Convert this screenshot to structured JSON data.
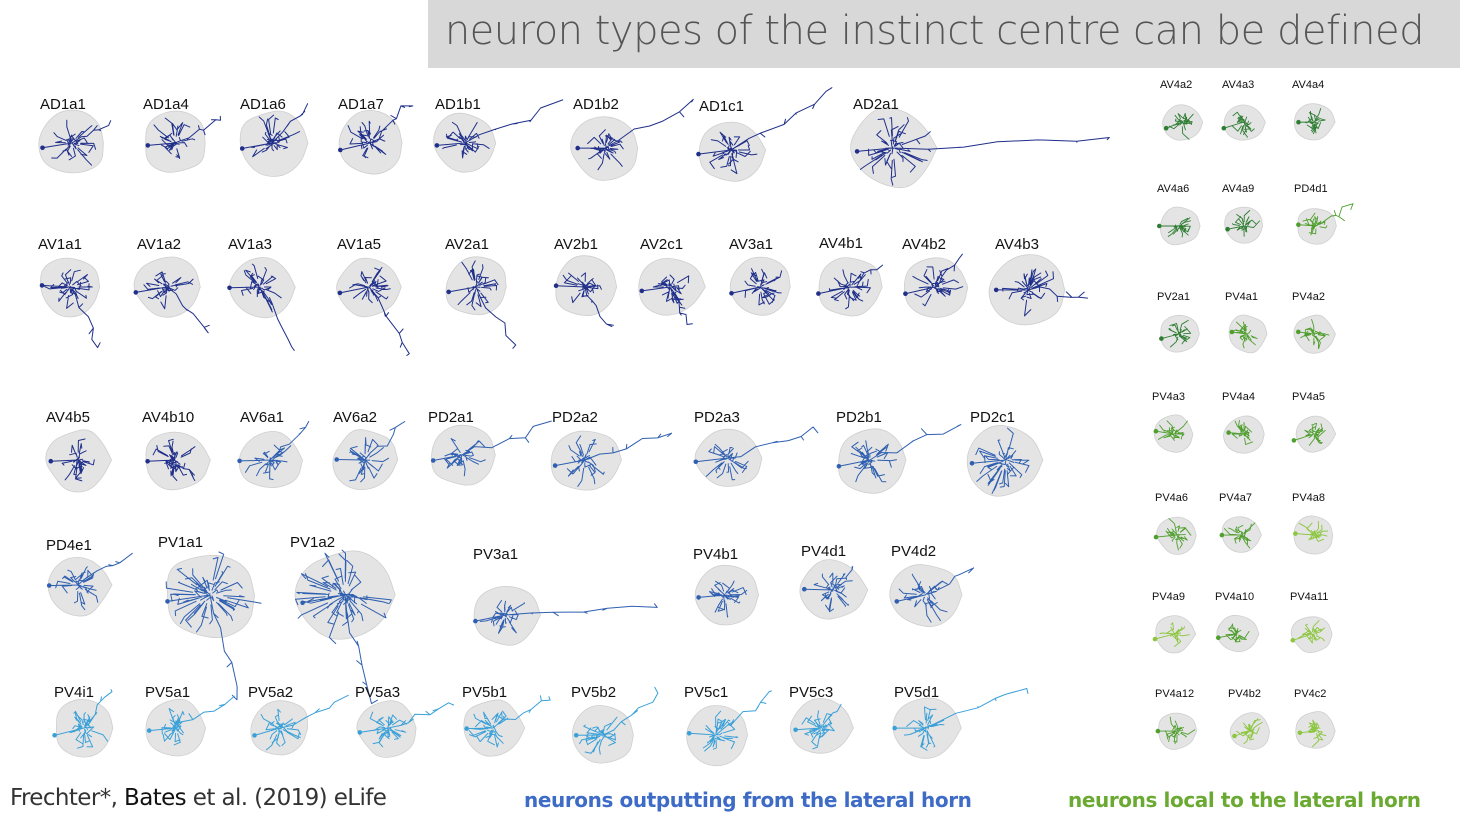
{
  "title": "neuron types of the instinct centre can be defined",
  "citation": {
    "author": "Frechter*, ",
    "bold_author": "Bates",
    "rest": " et al. (2019) eLife"
  },
  "legend": {
    "output_label": "neurons outputting from the lateral horn",
    "local_label": "neurons local to the lateral horn",
    "output_color": "#3d6bc6",
    "local_color": "#6aaa32"
  },
  "colors": {
    "lh_blob": "#e4e4e4",
    "dark_blue": "#1f2f8a",
    "mid_blue": "#2f5fb0",
    "light_blue": "#3aa0d8",
    "dark_green": "#2e7d32",
    "mid_green": "#4f9e2e",
    "light_green": "#8cc63f"
  },
  "output_neurons": [
    {
      "name": "AD1a1",
      "tone": "dark"
    },
    {
      "name": "AD1a4",
      "tone": "dark"
    },
    {
      "name": "AD1a6",
      "tone": "dark"
    },
    {
      "name": "AD1a7",
      "tone": "dark"
    },
    {
      "name": "AD1b1",
      "tone": "dark"
    },
    {
      "name": "AD1b2",
      "tone": "dark"
    },
    {
      "name": "AD1c1",
      "tone": "dark"
    },
    {
      "name": "AD2a1",
      "tone": "dark"
    },
    {
      "name": "AV1a1",
      "tone": "dark"
    },
    {
      "name": "AV1a2",
      "tone": "dark"
    },
    {
      "name": "AV1a3",
      "tone": "dark"
    },
    {
      "name": "AV1a5",
      "tone": "dark"
    },
    {
      "name": "AV2a1",
      "tone": "dark"
    },
    {
      "name": "AV2b1",
      "tone": "dark"
    },
    {
      "name": "AV2c1",
      "tone": "dark"
    },
    {
      "name": "AV3a1",
      "tone": "dark"
    },
    {
      "name": "AV4b1",
      "tone": "dark"
    },
    {
      "name": "AV4b2",
      "tone": "dark"
    },
    {
      "name": "AV4b3",
      "tone": "dark"
    },
    {
      "name": "AV4b5",
      "tone": "dark"
    },
    {
      "name": "AV4b10",
      "tone": "dark"
    },
    {
      "name": "AV6a1",
      "tone": "mid"
    },
    {
      "name": "AV6a2",
      "tone": "mid"
    },
    {
      "name": "PD2a1",
      "tone": "mid"
    },
    {
      "name": "PD2a2",
      "tone": "mid"
    },
    {
      "name": "PD2a3",
      "tone": "mid"
    },
    {
      "name": "PD2b1",
      "tone": "mid"
    },
    {
      "name": "PD2c1",
      "tone": "mid"
    },
    {
      "name": "PD4e1",
      "tone": "mid"
    },
    {
      "name": "PV1a1",
      "tone": "mid"
    },
    {
      "name": "PV1a2",
      "tone": "mid"
    },
    {
      "name": "PV3a1",
      "tone": "mid"
    },
    {
      "name": "PV4b1",
      "tone": "mid"
    },
    {
      "name": "PV4d1",
      "tone": "mid"
    },
    {
      "name": "PV4d2",
      "tone": "mid"
    },
    {
      "name": "PV4i1",
      "tone": "light"
    },
    {
      "name": "PV5a1",
      "tone": "light"
    },
    {
      "name": "PV5a2",
      "tone": "light"
    },
    {
      "name": "PV5a3",
      "tone": "light"
    },
    {
      "name": "PV5b1",
      "tone": "light"
    },
    {
      "name": "PV5b2",
      "tone": "light"
    },
    {
      "name": "PV5c1",
      "tone": "light"
    },
    {
      "name": "PV5c3",
      "tone": "light"
    },
    {
      "name": "PV5d1",
      "tone": "light"
    }
  ],
  "local_neurons": [
    {
      "name": "AV4a2",
      "tone": "dark"
    },
    {
      "name": "AV4a3",
      "tone": "dark"
    },
    {
      "name": "AV4a4",
      "tone": "dark"
    },
    {
      "name": "AV4a6",
      "tone": "dark"
    },
    {
      "name": "AV4a9",
      "tone": "dark"
    },
    {
      "name": "PD4d1",
      "tone": "mid"
    },
    {
      "name": "PV2a1",
      "tone": "dark"
    },
    {
      "name": "PV4a1",
      "tone": "mid"
    },
    {
      "name": "PV4a2",
      "tone": "mid"
    },
    {
      "name": "PV4a3",
      "tone": "mid"
    },
    {
      "name": "PV4a4",
      "tone": "mid"
    },
    {
      "name": "PV4a5",
      "tone": "mid"
    },
    {
      "name": "PV4a6",
      "tone": "mid"
    },
    {
      "name": "PV4a7",
      "tone": "mid"
    },
    {
      "name": "PV4a8",
      "tone": "light"
    },
    {
      "name": "PV4a9",
      "tone": "light"
    },
    {
      "name": "PV4a10",
      "tone": "mid"
    },
    {
      "name": "PV4a11",
      "tone": "light"
    },
    {
      "name": "PV4a12",
      "tone": "mid"
    },
    {
      "name": "PV4b2",
      "tone": "light"
    },
    {
      "name": "PV4c2",
      "tone": "light"
    }
  ]
}
